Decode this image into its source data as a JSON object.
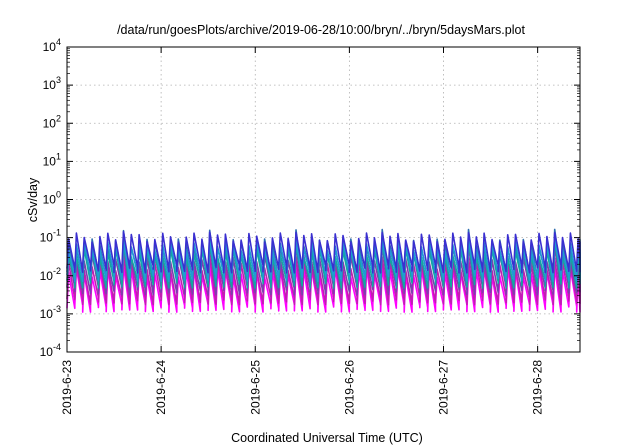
{
  "chart_data": {
    "type": "line",
    "title": "/data/run/goesPlots/archive/2019-06-28/10:00/bryn/../bryn/5daysMars.plot",
    "xlabel": "Coordinated Universal Time (UTC)",
    "ylabel": "cSv/day",
    "y_scale": "log",
    "ylim": [
      0.0001,
      10000
    ],
    "y_ticks": [
      {
        "base": "10",
        "exp": "-4",
        "value": 0.0001
      },
      {
        "base": "10",
        "exp": "-3",
        "value": 0.001
      },
      {
        "base": "10",
        "exp": "-2",
        "value": 0.01
      },
      {
        "base": "10",
        "exp": "-1",
        "value": 0.1
      },
      {
        "base": "10",
        "exp": "0",
        "value": 1
      },
      {
        "base": "10",
        "exp": "1",
        "value": 10
      },
      {
        "base": "10",
        "exp": "2",
        "value": 100
      },
      {
        "base": "10",
        "exp": "3",
        "value": 1000
      },
      {
        "base": "10",
        "exp": "4",
        "value": 10000
      }
    ],
    "x_ticks": [
      "2019-6-23",
      "2019-6-24",
      "2019-6-25",
      "2019-6-26",
      "2019-6-27",
      "2019-6-28"
    ],
    "xlim_days": [
      0,
      5.45
    ],
    "grid": true,
    "legend": "none",
    "sawtooth_period_days": 0.0833,
    "series": [
      {
        "color": "#3a2fd0",
        "peak": 0.1,
        "trough": 0.015
      },
      {
        "color": "#1f9ad6",
        "peak": 0.06,
        "trough": 0.009
      },
      {
        "color": "#11a8a0",
        "peak": 0.04,
        "trough": 0.006
      },
      {
        "color": "#2f6fb0",
        "peak": 0.07,
        "trough": 0.01
      },
      {
        "color": "#7a3fb0",
        "peak": 0.03,
        "trough": 0.004
      },
      {
        "color": "#c01fb0",
        "peak": 0.018,
        "trough": 0.0022
      },
      {
        "color": "#ff00ff",
        "peak": 0.012,
        "trough": 0.0014
      }
    ]
  }
}
